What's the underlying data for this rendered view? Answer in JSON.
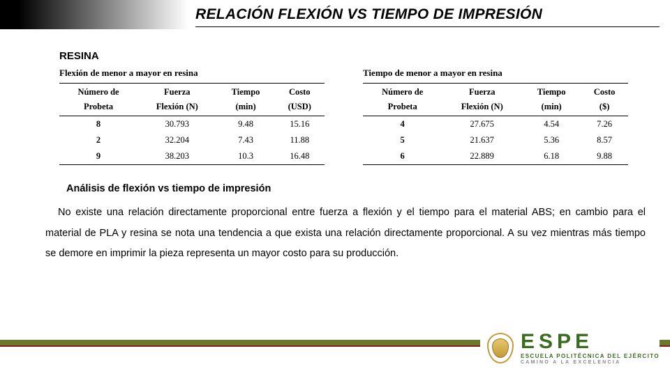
{
  "title": "RELACIÓN FLEXIÓN VS TIEMPO DE IMPRESIÓN",
  "subsection": "RESINA",
  "tables": {
    "left": {
      "caption": "Flexión de menor a mayor en resina",
      "head1": [
        "Número de",
        "Fuerza",
        "Tiempo",
        "Costo"
      ],
      "head2": [
        "Probeta",
        "Flexión (N)",
        "(min)",
        "(USD)"
      ],
      "rows": [
        [
          "8",
          "30.793",
          "9.48",
          "15.16"
        ],
        [
          "2",
          "32.204",
          "7.43",
          "11.88"
        ],
        [
          "9",
          "38.203",
          "10.3",
          "16.48"
        ]
      ]
    },
    "right": {
      "caption": "Tiempo de menor a mayor en resina",
      "head1": [
        "Número de",
        "Fuerza",
        "Tiempo",
        "Costo"
      ],
      "head2": [
        "Probeta",
        "Flexión (N)",
        "(min)",
        "($)"
      ],
      "rows": [
        [
          "4",
          "27.675",
          "4.54",
          "7.26"
        ],
        [
          "5",
          "21.637",
          "5.36",
          "8.57"
        ],
        [
          "6",
          "22.889",
          "6.18",
          "9.88"
        ]
      ]
    }
  },
  "analysis": {
    "heading": "Análisis de flexión vs tiempo de impresión",
    "body": "No existe una relación directamente proporcional entre fuerza a flexión y el tiempo para el material ABS; en cambio para el material de PLA y resina se nota una tendencia a que exista una relación directamente proporcional. A su vez mientras más tiempo se demore en imprimir la pieza representa un mayor costo para su producción."
  },
  "footer": {
    "letters": [
      "E",
      "S",
      "P",
      "E"
    ],
    "sub1": "ESCUELA POLITÉCNICA DEL EJÉRCITO",
    "sub2": "CAMINO A LA EXCELENCIA",
    "stripe_color": "#6a7a2a",
    "stripe_accent": "#8b1b1b",
    "brand_color": "#3a6b1f"
  }
}
